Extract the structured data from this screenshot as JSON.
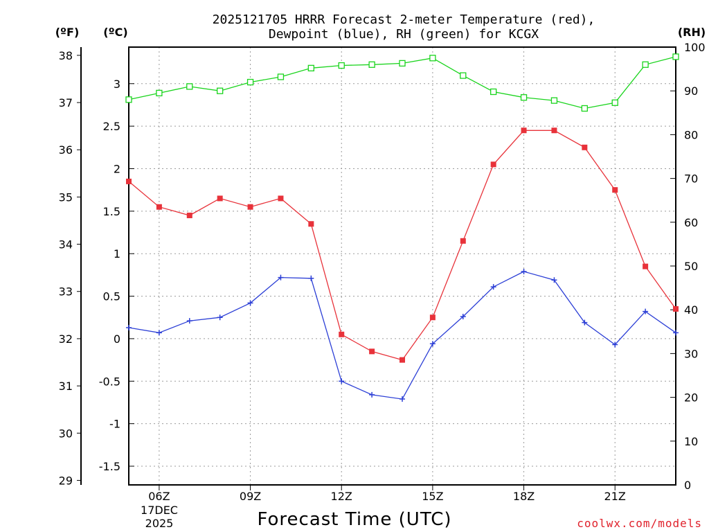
{
  "chart_data": {
    "type": "line",
    "title_line1": "2025121705 HRRR Forecast 2-meter Temperature (red),",
    "title_line2": "Dewpoint (blue), RH (green) for KCGX",
    "xlabel": "Forecast Time (UTC)",
    "credit": "coolwx.com/models",
    "left_units": {
      "f": "(ºF)",
      "c": "(ºC)"
    },
    "right_unit": "(RH)",
    "date_label_1": "17DEC",
    "date_label_2": "2025",
    "x_hours": [
      5,
      6,
      7,
      8,
      9,
      10,
      11,
      12,
      13,
      14,
      15,
      16,
      17,
      18,
      19,
      20,
      21,
      22,
      23
    ],
    "x_range": [
      5,
      23
    ],
    "x_ticks": [
      {
        "hour": 6,
        "label": "06Z"
      },
      {
        "hour": 9,
        "label": "09Z"
      },
      {
        "hour": 12,
        "label": "12Z"
      },
      {
        "hour": 15,
        "label": "15Z"
      },
      {
        "hour": 18,
        "label": "18Z"
      },
      {
        "hour": 21,
        "label": "21Z"
      }
    ],
    "c_range": [
      -1.72,
      3.43
    ],
    "c_ticks": [
      "-1.5",
      "-1",
      "-0.5",
      "0",
      "0.5",
      "1",
      "1.5",
      "2",
      "2.5",
      "3"
    ],
    "f_ticks": [
      "29",
      "30",
      "31",
      "32",
      "33",
      "34",
      "35",
      "36",
      "37",
      "38"
    ],
    "rh_range": [
      0,
      100
    ],
    "rh_ticks": [
      "0",
      "10",
      "20",
      "30",
      "40",
      "50",
      "60",
      "70",
      "80",
      "90",
      "100"
    ],
    "series": [
      {
        "name": "Temperature",
        "unit": "C",
        "color": "#e8323a",
        "marker": "filled-square",
        "values": [
          1.85,
          1.55,
          1.45,
          1.65,
          1.55,
          1.65,
          1.35,
          0.05,
          -0.15,
          -0.25,
          0.25,
          1.15,
          2.05,
          2.45,
          2.45,
          2.25,
          1.75,
          0.85,
          0.35
        ]
      },
      {
        "name": "Dewpoint",
        "unit": "C",
        "color": "#2c3fd6",
        "marker": "plus",
        "values": [
          0.13,
          0.07,
          0.21,
          0.25,
          0.42,
          0.72,
          0.71,
          -0.5,
          -0.66,
          -0.71,
          -0.06,
          0.26,
          0.61,
          0.79,
          0.69,
          0.19,
          -0.07,
          0.32,
          0.07
        ]
      },
      {
        "name": "RH",
        "unit": "%",
        "color": "#19d41c",
        "marker": "open-square",
        "values": [
          88,
          89.5,
          91,
          90,
          92,
          93.2,
          95.2,
          95.8,
          96,
          96.3,
          97.5,
          93.5,
          89.8,
          88.5,
          87.8,
          86,
          87.3,
          96,
          97.8
        ]
      }
    ]
  }
}
